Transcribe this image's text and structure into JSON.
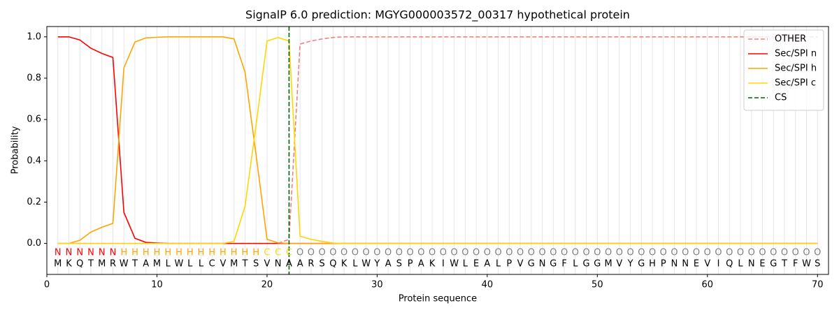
{
  "chart_data": {
    "type": "line",
    "title": "SignalP 6.0 prediction: MGYG000003572_00317 hypothetical protein",
    "x_label": "Protein sequence",
    "y_label": "Probability",
    "xlim": [
      0,
      71
    ],
    "ylim": [
      -0.15,
      1.05
    ],
    "xticks": [
      0,
      10,
      20,
      30,
      40,
      50,
      60,
      70
    ],
    "yticks": [
      {
        "value": 0,
        "label": "0.0"
      },
      {
        "value": 0.2,
        "label": "0.2"
      },
      {
        "value": 0.4,
        "label": "0.4"
      },
      {
        "value": 0.6,
        "label": "0.6"
      },
      {
        "value": 0.8,
        "label": "0.8"
      },
      {
        "value": 1,
        "label": "1.0"
      }
    ],
    "grid_x_every_position": true,
    "legend": "upper right",
    "x": [
      1,
      2,
      3,
      4,
      5,
      6,
      7,
      8,
      9,
      10,
      11,
      12,
      13,
      14,
      15,
      16,
      17,
      18,
      19,
      20,
      21,
      22,
      23,
      24,
      25,
      26,
      27,
      28,
      29,
      30,
      31,
      32,
      33,
      34,
      35,
      36,
      37,
      38,
      39,
      40,
      41,
      42,
      43,
      44,
      45,
      46,
      47,
      48,
      49,
      50,
      51,
      52,
      53,
      54,
      55,
      56,
      57,
      58,
      59,
      60,
      61,
      62,
      63,
      64,
      65,
      66,
      67,
      68,
      69,
      70
    ],
    "residues": [
      "M",
      "K",
      "Q",
      "T",
      "M",
      "R",
      "W",
      "T",
      "A",
      "M",
      "L",
      "W",
      "L",
      "L",
      "C",
      "V",
      "M",
      "T",
      "S",
      "V",
      "N",
      "A",
      "A",
      "R",
      "S",
      "Q",
      "K",
      "L",
      "W",
      "Y",
      "A",
      "S",
      "P",
      "A",
      "K",
      "I",
      "W",
      "L",
      "E",
      "A",
      "L",
      "P",
      "V",
      "G",
      "N",
      "G",
      "F",
      "L",
      "G",
      "G",
      "M",
      "V",
      "Y",
      "G",
      "H",
      "P",
      "N",
      "N",
      "E",
      "V",
      "I",
      "Q",
      "L",
      "N",
      "E",
      "G",
      "T",
      "F",
      "W",
      "S"
    ],
    "labels": [
      "N",
      "N",
      "N",
      "N",
      "N",
      "N",
      "H",
      "H",
      "H",
      "H",
      "H",
      "H",
      "H",
      "H",
      "H",
      "H",
      "H",
      "H",
      "H",
      "C",
      "C",
      "C",
      "O",
      "O",
      "O",
      "O",
      "O",
      "O",
      "O",
      "O",
      "O",
      "O",
      "O",
      "O",
      "O",
      "O",
      "O",
      "O",
      "O",
      "O",
      "O",
      "O",
      "O",
      "O",
      "O",
      "O",
      "O",
      "O",
      "O",
      "O",
      "O",
      "O",
      "O",
      "O",
      "O",
      "O",
      "O",
      "O",
      "O",
      "O",
      "O",
      "O",
      "O",
      "O",
      "O",
      "O",
      "O",
      "O",
      "O",
      "O"
    ],
    "label_colors": {
      "N": "#ff0000",
      "H": "#ffa500",
      "C": "#ffd700",
      "O": "#808080"
    },
    "series": [
      {
        "name": "OTHER",
        "color": "#f08080",
        "dashed": true,
        "values": [
          0,
          0,
          0,
          0,
          0,
          0,
          0,
          0,
          0,
          0,
          0,
          0,
          0,
          0,
          0,
          0,
          0,
          0,
          0,
          0,
          0,
          0.02,
          0.965,
          0.98,
          0.99,
          0.997,
          1,
          1,
          1,
          1,
          1,
          1,
          1,
          1,
          1,
          1,
          1,
          1,
          1,
          1,
          1,
          1,
          1,
          1,
          1,
          1,
          1,
          1,
          1,
          1,
          1,
          1,
          1,
          1,
          1,
          1,
          1,
          1,
          1,
          1,
          1,
          1,
          1,
          1,
          1,
          1,
          1,
          1,
          1,
          1
        ]
      },
      {
        "name": "Sec/SPI n",
        "color": "#ff0000",
        "dashed": false,
        "values": [
          1,
          1,
          0.985,
          0.945,
          0.92,
          0.9,
          0.15,
          0.025,
          0.005,
          0.002,
          0,
          0,
          0,
          0,
          0,
          0,
          0,
          0,
          0,
          0,
          0,
          0,
          0,
          0,
          0,
          0,
          0,
          0,
          0,
          0,
          0,
          0,
          0,
          0,
          0,
          0,
          0,
          0,
          0,
          0,
          0,
          0,
          0,
          0,
          0,
          0,
          0,
          0,
          0,
          0,
          0,
          0,
          0,
          0,
          0,
          0,
          0,
          0,
          0,
          0,
          0,
          0,
          0,
          0,
          0,
          0,
          0,
          0,
          0,
          0
        ]
      },
      {
        "name": "Sec/SPI h",
        "color": "#ffa500",
        "dashed": false,
        "values": [
          0,
          0,
          0.015,
          0.055,
          0.078,
          0.097,
          0.85,
          0.975,
          0.995,
          0.998,
          1,
          1,
          1,
          1,
          1,
          1,
          0.99,
          0.83,
          0.43,
          0.02,
          0.003,
          0,
          0,
          0,
          0,
          0,
          0,
          0,
          0,
          0,
          0,
          0,
          0,
          0,
          0,
          0,
          0,
          0,
          0,
          0,
          0,
          0,
          0,
          0,
          0,
          0,
          0,
          0,
          0,
          0,
          0,
          0,
          0,
          0,
          0,
          0,
          0,
          0,
          0,
          0,
          0,
          0,
          0,
          0,
          0,
          0,
          0,
          0,
          0,
          0
        ]
      },
      {
        "name": "Sec/SPI c",
        "color": "#ffd700",
        "dashed": false,
        "values": [
          0,
          0,
          0,
          0,
          0,
          0,
          0,
          0,
          0,
          0,
          0,
          0,
          0,
          0,
          0,
          0,
          0.01,
          0.18,
          0.57,
          0.98,
          0.997,
          0.98,
          0.035,
          0.02,
          0.01,
          0.002,
          0,
          0,
          0,
          0,
          0,
          0,
          0,
          0,
          0,
          0,
          0,
          0,
          0,
          0,
          0,
          0,
          0,
          0,
          0,
          0,
          0,
          0,
          0,
          0,
          0,
          0,
          0,
          0,
          0,
          0,
          0,
          0,
          0,
          0,
          0,
          0,
          0,
          0,
          0,
          0,
          0,
          0,
          0,
          0
        ]
      }
    ],
    "cleavage": {
      "name": "CS",
      "color": "#006400",
      "x": 22
    }
  }
}
